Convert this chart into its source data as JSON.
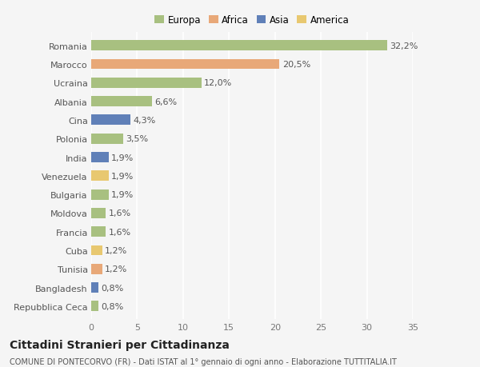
{
  "categories": [
    "Romania",
    "Marocco",
    "Ucraina",
    "Albania",
    "Cina",
    "Polonia",
    "India",
    "Venezuela",
    "Bulgaria",
    "Moldova",
    "Francia",
    "Cuba",
    "Tunisia",
    "Bangladesh",
    "Repubblica Ceca"
  ],
  "values": [
    32.2,
    20.5,
    12.0,
    6.6,
    4.3,
    3.5,
    1.9,
    1.9,
    1.9,
    1.6,
    1.6,
    1.2,
    1.2,
    0.8,
    0.8
  ],
  "labels": [
    "32,2%",
    "20,5%",
    "12,0%",
    "6,6%",
    "4,3%",
    "3,5%",
    "1,9%",
    "1,9%",
    "1,9%",
    "1,6%",
    "1,6%",
    "1,2%",
    "1,2%",
    "0,8%",
    "0,8%"
  ],
  "colors": [
    "#a8c080",
    "#e8a878",
    "#a8c080",
    "#a8c080",
    "#6080b8",
    "#a8c080",
    "#6080b8",
    "#e8c870",
    "#a8c080",
    "#a8c080",
    "#a8c080",
    "#e8c870",
    "#e8a878",
    "#6080b8",
    "#a8c080"
  ],
  "continent": [
    "Europa",
    "Africa",
    "Europa",
    "Europa",
    "Asia",
    "Europa",
    "Asia",
    "America",
    "Europa",
    "Europa",
    "Europa",
    "America",
    "Africa",
    "Asia",
    "Europa"
  ],
  "legend_labels": [
    "Europa",
    "Africa",
    "Asia",
    "America"
  ],
  "legend_colors": [
    "#a8c080",
    "#e8a878",
    "#6080b8",
    "#e8c870"
  ],
  "title": "Cittadini Stranieri per Cittadinanza",
  "subtitle": "COMUNE DI PONTECORVO (FR) - Dati ISTAT al 1° gennaio di ogni anno - Elaborazione TUTTITALIA.IT",
  "xlim": [
    0,
    35
  ],
  "xticks": [
    0,
    5,
    10,
    15,
    20,
    25,
    30,
    35
  ],
  "background_color": "#f5f5f5",
  "bar_height": 0.55,
  "label_fontsize": 8.0,
  "tick_fontsize": 8.0,
  "title_fontsize": 10,
  "subtitle_fontsize": 7.0
}
